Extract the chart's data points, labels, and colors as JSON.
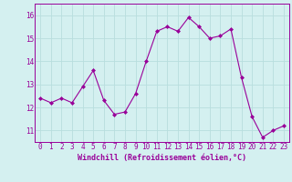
{
  "x": [
    0,
    1,
    2,
    3,
    4,
    5,
    6,
    7,
    8,
    9,
    10,
    11,
    12,
    13,
    14,
    15,
    16,
    17,
    18,
    19,
    20,
    21,
    22,
    23
  ],
  "y": [
    12.4,
    12.2,
    12.4,
    12.2,
    12.9,
    13.6,
    12.3,
    11.7,
    11.8,
    12.6,
    14.0,
    15.3,
    15.5,
    15.3,
    15.9,
    15.5,
    15.0,
    15.1,
    15.4,
    13.3,
    11.6,
    10.7,
    11.0,
    11.2
  ],
  "line_color": "#990099",
  "marker_color": "#990099",
  "bg_color": "#d4f0f0",
  "grid_color": "#b8dede",
  "xlabel": "Windchill (Refroidissement éolien,°C)",
  "xlabel_color": "#990099",
  "tick_color": "#990099",
  "spine_color": "#990099",
  "ylim": [
    10.5,
    16.5
  ],
  "yticks": [
    11,
    12,
    13,
    14,
    15,
    16
  ],
  "xticks": [
    0,
    1,
    2,
    3,
    4,
    5,
    6,
    7,
    8,
    9,
    10,
    11,
    12,
    13,
    14,
    15,
    16,
    17,
    18,
    19,
    20,
    21,
    22,
    23
  ],
  "tick_fontsize": 5.5,
  "xlabel_fontsize": 6.0
}
